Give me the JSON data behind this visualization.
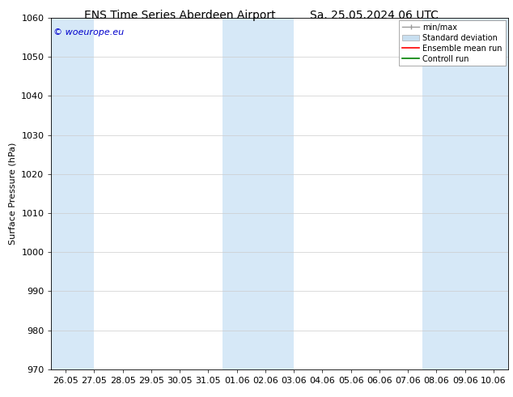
{
  "title": "ENS Time Series Aberdeen Airport",
  "title2": "Sa. 25.05.2024 06 UTC",
  "ylabel": "Surface Pressure (hPa)",
  "ylim": [
    970,
    1060
  ],
  "yticks": [
    970,
    980,
    990,
    1000,
    1010,
    1020,
    1030,
    1040,
    1050,
    1060
  ],
  "xtick_labels": [
    "26.05",
    "27.05",
    "28.05",
    "29.05",
    "30.05",
    "31.05",
    "01.06",
    "02.06",
    "03.06",
    "04.06",
    "05.06",
    "06.06",
    "07.06",
    "08.06",
    "09.06",
    "10.06"
  ],
  "shade_color": "#d6e8f7",
  "background_color": "#ffffff",
  "watermark": "© woeurope.eu",
  "watermark_color": "#0000cc",
  "legend_entries": [
    "min/max",
    "Standard deviation",
    "Ensemble mean run",
    "Controll run"
  ],
  "legend_colors": [
    "#aaaaaa",
    "#c8dff0",
    "#ff0000",
    "#008000"
  ],
  "title_fontsize": 10,
  "axis_fontsize": 8,
  "ylabel_fontsize": 8
}
